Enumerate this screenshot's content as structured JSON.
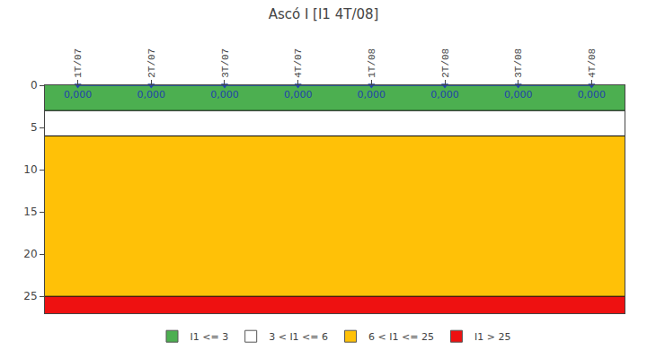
{
  "chart_data": {
    "type": "line",
    "title": "Ascó I [I1 4T/08]",
    "categories": [
      "1T/07",
      "2T/07",
      "3T/07",
      "4T/07",
      "1T/08",
      "2T/08",
      "3T/08",
      "4T/08"
    ],
    "values": [
      0.0,
      0.0,
      0.0,
      0.0,
      0.0,
      0.0,
      0.0,
      0.0
    ],
    "value_labels": [
      "0,000",
      "0,000",
      "0,000",
      "0,000",
      "0,000",
      "0,000",
      "0,000",
      "0,000"
    ],
    "data_labels": true,
    "color": "#2244AA",
    "marker": "triangle-down",
    "ylim": [
      27,
      0
    ],
    "yticks": [
      0,
      5,
      10,
      15,
      20,
      25
    ],
    "grid": false,
    "legend": "bottom",
    "bands": [
      {
        "name": "I1 <= 3",
        "from": 0,
        "to": 3,
        "color": "#4CAF50"
      },
      {
        "name": "3 < I1 <= 6",
        "from": 3,
        "to": 6,
        "color": "#FFFFFF"
      },
      {
        "name": "6 < I1 <= 25",
        "from": 6,
        "to": 25,
        "color": "#FFC107"
      },
      {
        "name": "I1 > 25",
        "from": 25,
        "to": 27,
        "color": "#EE1111"
      }
    ]
  }
}
